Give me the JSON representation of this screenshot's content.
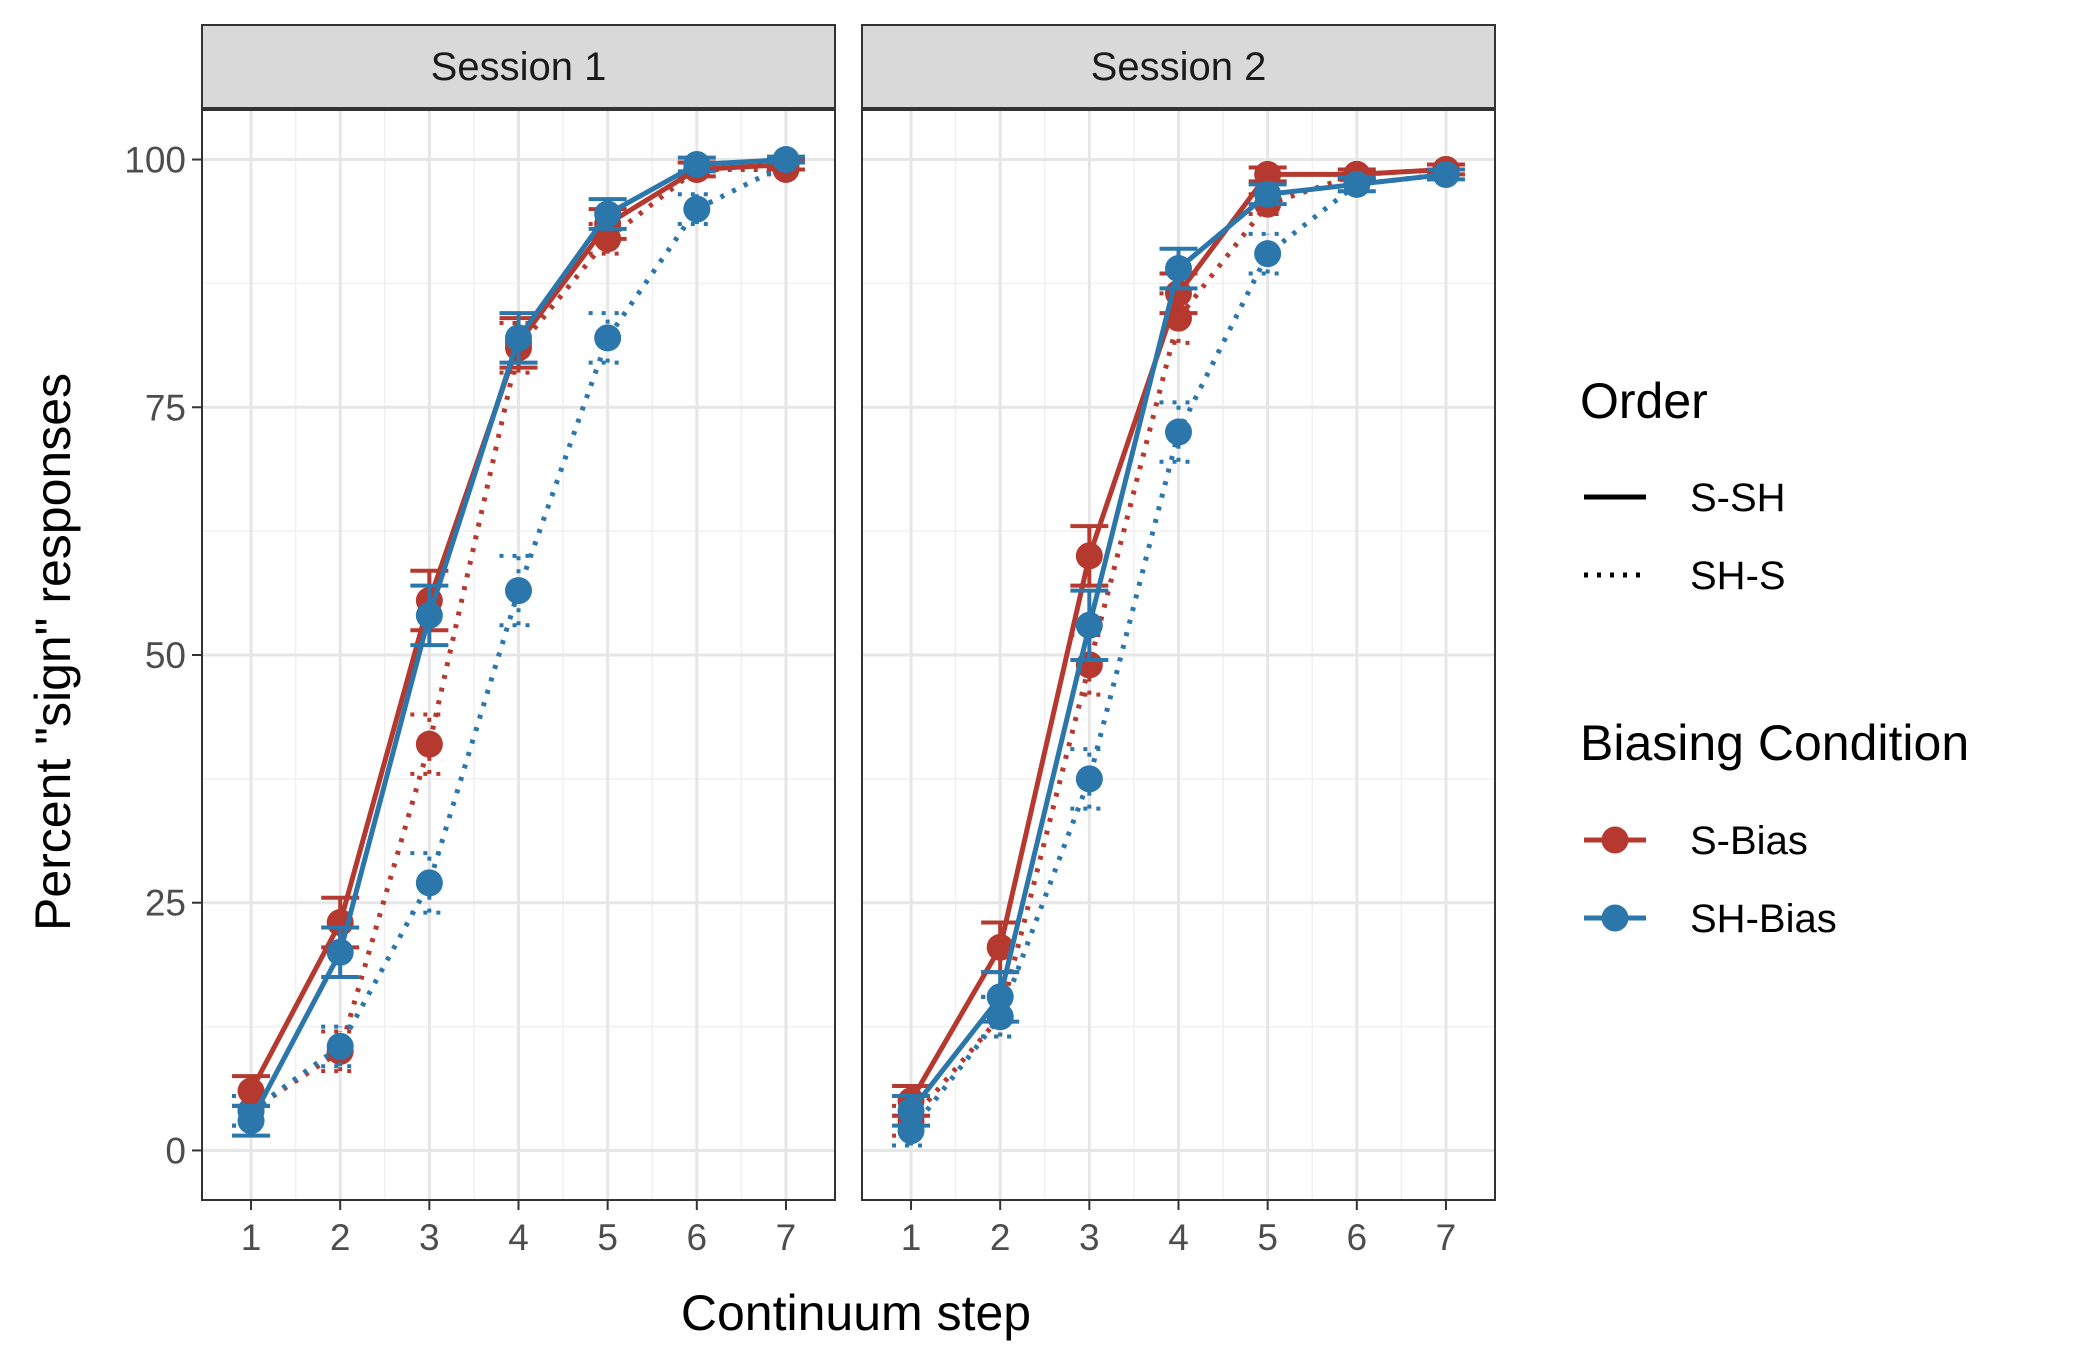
{
  "chart_data": {
    "type": "line",
    "xlabel": "Continuum step",
    "ylabel": "Percent \"sign\" responses",
    "x": [
      1,
      2,
      3,
      4,
      5,
      6,
      7
    ],
    "x_ticks": [
      "1",
      "2",
      "3",
      "4",
      "5",
      "6",
      "7"
    ],
    "y_ticks": [
      "0",
      "25",
      "50",
      "75",
      "100"
    ],
    "xlim": [
      0.45,
      7.55
    ],
    "ylim": [
      -5,
      105
    ],
    "grid": true,
    "legend_placement": "right",
    "colors": {
      "S-Bias": "#b5392f",
      "SH-Bias": "#2b76aa"
    },
    "legends": [
      {
        "title": "Order",
        "entries": [
          "S-SH",
          "SH-S"
        ]
      },
      {
        "title": "Biasing Condition",
        "entries": [
          "S-Bias",
          "SH-Bias"
        ]
      }
    ],
    "panels": [
      {
        "label": "Session 1",
        "series": [
          {
            "bias": "S-Bias",
            "order": "S-SH",
            "values": [
              6,
              23,
              55.5,
              81.5,
              93.5,
              99,
              99.5
            ],
            "errors": [
              1.5,
              2.5,
              3,
              2.5,
              1.5,
              0.7,
              0.5
            ]
          },
          {
            "bias": "SH-Bias",
            "order": "S-SH",
            "values": [
              3,
              20,
              54,
              82,
              94.5,
              99.5,
              100
            ],
            "errors": [
              1.5,
              2.5,
              3,
              2.5,
              1.5,
              0.7,
              0.3
            ]
          },
          {
            "bias": "S-Bias",
            "order": "SH-S",
            "values": [
              4,
              10,
              41,
              81,
              92,
              99,
              99
            ],
            "errors": [
              1.5,
              2,
              3,
              2.5,
              1.5,
              0.7,
              0.5
            ]
          },
          {
            "bias": "SH-Bias",
            "order": "SH-S",
            "values": [
              4,
              10.5,
              27,
              56.5,
              82,
              95,
              99.5
            ],
            "errors": [
              1.5,
              2,
              3,
              3.5,
              2.5,
              1.5,
              0.5
            ]
          }
        ]
      },
      {
        "label": "Session 2",
        "series": [
          {
            "bias": "S-Bias",
            "order": "S-SH",
            "values": [
              5,
              20.5,
              60,
              86.5,
              98.5,
              98.5,
              99
            ],
            "errors": [
              1.5,
              2.5,
              3,
              2,
              0.7,
              0.5,
              0.5
            ]
          },
          {
            "bias": "SH-Bias",
            "order": "S-SH",
            "values": [
              4,
              15.5,
              53,
              89,
              96.5,
              97.5,
              98.5
            ],
            "errors": [
              1.5,
              2.5,
              3.5,
              2,
              1,
              0.7,
              0.5
            ]
          },
          {
            "bias": "S-Bias",
            "order": "SH-S",
            "values": [
              3,
              13.5,
              49,
              84,
              95.5,
              98.5,
              99
            ],
            "errors": [
              1.5,
              2,
              3,
              2.5,
              1,
              0.5,
              0.5
            ]
          },
          {
            "bias": "SH-Bias",
            "order": "SH-S",
            "values": [
              2,
              13.5,
              37.5,
              72.5,
              90.5,
              97.5,
              98.5
            ],
            "errors": [
              1.5,
              2,
              3,
              3,
              2,
              0.7,
              0.5
            ]
          }
        ]
      }
    ]
  }
}
